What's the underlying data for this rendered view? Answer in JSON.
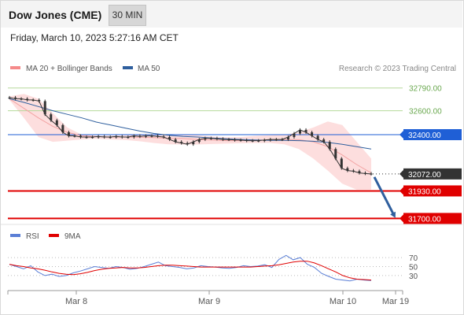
{
  "header": {
    "title": "Dow Jones (CME)",
    "interval": "30 MIN"
  },
  "timestamp": "Friday, March 10, 2023 5:27:16 AM CET",
  "legend": {
    "ma20": "MA 20 + Bollinger Bands",
    "ma50": "MA 50",
    "ma20_color": "#f58a8a",
    "ma50_color": "#2f5f9e"
  },
  "credit": "Research © 2023 Trading Central",
  "rsi_legend": {
    "rsi": "RSI",
    "ma9": "9MA",
    "rsi_color": "#5b7fd6",
    "ma9_color": "#e00000"
  },
  "colors": {
    "candle": "#333333",
    "bands": "#fdd8d8",
    "resistance": "#b5d99a",
    "support_blue": "#1f5fd6",
    "support_red": "#e00000",
    "current_bg": "#333333",
    "arrow": "#2f5f9e"
  },
  "chart_data": [
    {
      "type": "line",
      "name": "price",
      "xlabels": [
        "Mar 8",
        "Mar 9",
        "Mar 10",
        "Mar 19"
      ],
      "ylim": [
        31650,
        32900
      ],
      "series": [
        {
          "name": "price",
          "values": [
            32710,
            32700,
            32700,
            32690,
            32690,
            32680,
            32570,
            32520,
            32480,
            32420,
            32390,
            32390,
            32380,
            32380,
            32380,
            32385,
            32380,
            32380,
            32385,
            32380,
            32380,
            32390,
            32385,
            32390,
            32390,
            32385,
            32380,
            32360,
            32340,
            32330,
            32320,
            32340,
            32360,
            32370,
            32370,
            32365,
            32360,
            32360,
            32355,
            32355,
            32350,
            32350,
            32350,
            32355,
            32360,
            32360,
            32360,
            32380,
            32410,
            32440,
            32420,
            32390,
            32360,
            32340,
            32280,
            32200,
            32120,
            32100,
            32095,
            32080,
            32075,
            32072
          ]
        },
        {
          "name": "MA 50",
          "values": [
            32700,
            32670,
            32635,
            32600,
            32570,
            32540,
            32505,
            32480,
            32455,
            32430,
            32410,
            32395,
            32385,
            32380,
            32372,
            32365,
            32360,
            32355,
            32352,
            32352,
            32350,
            32345,
            32335,
            32320,
            32300,
            32280
          ]
        },
        {
          "name": "MA 20",
          "values": [
            32700,
            32620,
            32540,
            32470,
            32420,
            32390,
            32385,
            32380,
            32380,
            32378,
            32375,
            32370,
            32368,
            32360,
            32355,
            32350,
            32350,
            32352,
            32355,
            32360,
            32358,
            32340,
            32300,
            32230,
            32150,
            32080
          ]
        },
        {
          "name": "Bollinger Upper",
          "values": [
            32720,
            32740,
            32700,
            32580,
            32460,
            32400,
            32390,
            32392,
            32395,
            32398,
            32400,
            32402,
            32400,
            32395,
            32385,
            32378,
            32380,
            32390,
            32395,
            32400,
            32420,
            32460,
            32510,
            32480,
            32340,
            32200
          ]
        },
        {
          "name": "Bollinger Lower",
          "values": [
            32690,
            32540,
            32380,
            32340,
            32350,
            32360,
            32365,
            32360,
            32355,
            32345,
            32330,
            32320,
            32318,
            32318,
            32322,
            32325,
            32328,
            32330,
            32330,
            32320,
            32280,
            32200,
            32100,
            31990,
            31940,
            31940
          ]
        }
      ],
      "levels": [
        {
          "label": "32790.00",
          "value": 32790,
          "kind": "resistance"
        },
        {
          "label": "32600.00",
          "value": 32600,
          "kind": "resistance"
        },
        {
          "label": "32400.00",
          "value": 32400,
          "kind": "pivot"
        },
        {
          "label": "32072.00",
          "value": 32072,
          "kind": "current"
        },
        {
          "label": "31930.00",
          "value": 31930,
          "kind": "support"
        },
        {
          "label": "31700.00",
          "value": 31700,
          "kind": "support"
        }
      ]
    },
    {
      "type": "line",
      "name": "RSI",
      "ylim": [
        0,
        100
      ],
      "yticks": [
        70,
        50,
        30
      ],
      "series": [
        {
          "name": "RSI",
          "values": [
            55,
            50,
            45,
            52,
            38,
            30,
            33,
            28,
            30,
            36,
            40,
            45,
            50,
            48,
            46,
            50,
            48,
            44,
            46,
            50,
            55,
            60,
            52,
            50,
            48,
            45,
            47,
            52,
            50,
            49,
            47,
            46,
            48,
            52,
            50,
            51,
            54,
            48,
            66,
            75,
            65,
            70,
            55,
            48,
            35,
            28,
            22,
            20,
            18,
            22,
            20,
            19
          ]
        },
        {
          "name": "9MA",
          "values": [
            55,
            52,
            50,
            47,
            45,
            42,
            38,
            35,
            33,
            32,
            34,
            37,
            41,
            44,
            46,
            47,
            48,
            47,
            47,
            48,
            50,
            52,
            53,
            53,
            52,
            51,
            50,
            49,
            49,
            49,
            49,
            49,
            49,
            49,
            49,
            50,
            51,
            52,
            54,
            57,
            60,
            62,
            62,
            58,
            52,
            45,
            38,
            30,
            25,
            22,
            21,
            20
          ]
        }
      ]
    }
  ]
}
